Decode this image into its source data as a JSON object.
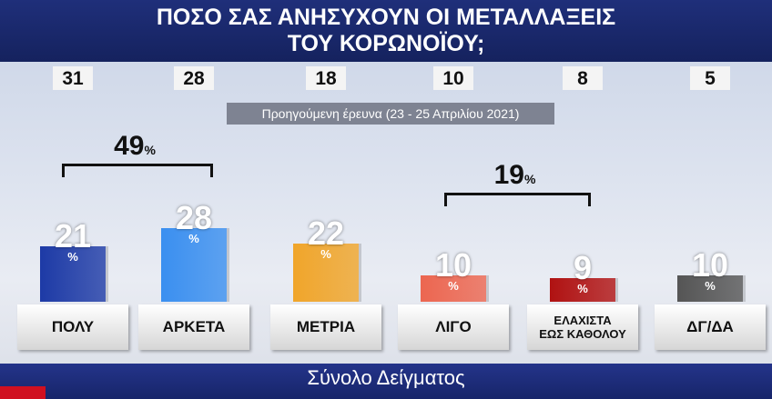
{
  "chart_data": {
    "type": "bar",
    "title": [
      "ΠΟΣΟ ΣΑΣ ΑΝΗΣΥΧΟΥΝ ΟΙ ΜΕΤΑΛΛΑΞΕΙΣ",
      "ΤΟΥ ΚΟΡΩΝΟΪΟΥ;"
    ],
    "categories": [
      "ΠΟΛΥ",
      "ΑΡΚΕΤΑ",
      "ΜΕΤΡΙΑ",
      "ΛΙΓΟ",
      "ΕΛΑΧΙΣΤΑ\nΕΩΣ ΚΑΘΟΛΟΥ",
      "ΔΓ/ΔΑ"
    ],
    "values": [
      21,
      28,
      22,
      10,
      9,
      10
    ],
    "colors": [
      "#1d3aa6",
      "#3a8ff0",
      "#f0a52a",
      "#ec6650",
      "#b01212",
      "#555555"
    ],
    "unit": "%",
    "previous": {
      "label": "Προηγούμενη έρευνα (23 - 25 Απριλίου 2021)",
      "values": [
        31,
        28,
        18,
        10,
        8,
        5
      ]
    },
    "annotations": [
      49,
      19
    ],
    "footer": "Σύνολο Δείγματος"
  }
}
